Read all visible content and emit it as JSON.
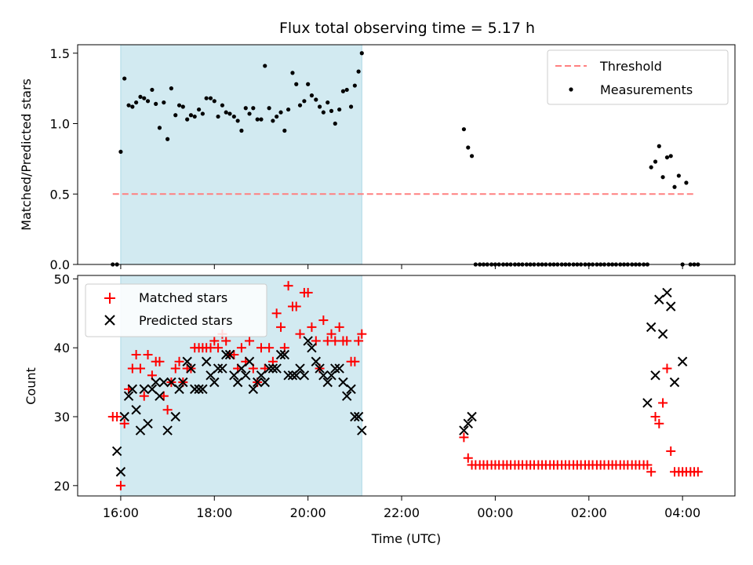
{
  "title": "Flux total observing time = 5.17 h",
  "colors": {
    "shade": "#add8e6",
    "threshold": "#ff8080",
    "measurements": "#000000",
    "matched": "#ff0000",
    "predicted": "#000000"
  },
  "chart_data": [
    {
      "type": "scatter",
      "ylabel": "Matched/Predicted stars",
      "ylim": [
        0,
        1.56
      ],
      "xlim": [
        15.08,
        29.12
      ],
      "yticks": [
        0.0,
        0.5,
        1.0,
        1.5
      ],
      "ytick_labels": [
        "0.0",
        "0.5",
        "1.0",
        "1.5"
      ],
      "shaded_span": [
        16.0,
        21.15
      ],
      "legend": {
        "placement": "top-right",
        "threshold_label": "Threshold",
        "measurements_label": "Measurements"
      },
      "threshold": {
        "value": 0.5,
        "x_range": [
          15.83,
          28.25
        ]
      },
      "measurements": {
        "x": [
          15.83,
          15.92,
          16.0,
          16.08,
          16.17,
          16.25,
          16.33,
          16.42,
          16.5,
          16.58,
          16.67,
          16.75,
          16.83,
          16.92,
          17.0,
          17.08,
          17.17,
          17.25,
          17.33,
          17.42,
          17.5,
          17.58,
          17.67,
          17.75,
          17.83,
          17.92,
          18.0,
          18.08,
          18.17,
          18.25,
          18.33,
          18.42,
          18.5,
          18.58,
          18.67,
          18.75,
          18.83,
          18.92,
          19.0,
          19.08,
          19.17,
          19.25,
          19.33,
          19.42,
          19.5,
          19.58,
          19.67,
          19.75,
          19.83,
          19.92,
          20.0,
          20.08,
          20.17,
          20.25,
          20.33,
          20.42,
          20.5,
          20.58,
          20.67,
          20.75,
          20.83,
          20.92,
          21.0,
          21.08,
          21.15,
          23.33,
          23.42,
          23.5,
          23.58,
          23.67,
          23.75,
          23.83,
          23.92,
          24.0,
          24.08,
          24.17,
          24.25,
          24.33,
          24.42,
          24.5,
          24.58,
          24.67,
          24.75,
          24.83,
          24.92,
          25.0,
          25.08,
          25.17,
          25.25,
          25.33,
          25.42,
          25.5,
          25.58,
          25.67,
          25.75,
          25.83,
          25.92,
          26.0,
          26.08,
          26.17,
          26.25,
          26.33,
          26.42,
          26.5,
          26.58,
          26.67,
          26.75,
          26.83,
          26.92,
          27.0,
          27.08,
          27.17,
          27.25,
          27.33,
          27.42,
          27.5,
          27.58,
          27.67,
          27.75,
          27.83,
          27.92,
          28.0,
          28.08,
          28.17,
          28.25,
          28.33
        ],
        "y": [
          0.0,
          0.0,
          0.8,
          1.32,
          1.13,
          1.12,
          1.15,
          1.19,
          1.18,
          1.16,
          1.24,
          1.14,
          0.97,
          1.15,
          0.89,
          1.25,
          1.06,
          1.13,
          1.12,
          1.03,
          1.06,
          1.05,
          1.1,
          1.07,
          1.18,
          1.18,
          1.16,
          1.05,
          1.13,
          1.08,
          1.07,
          1.05,
          1.02,
          0.95,
          1.11,
          1.07,
          1.11,
          1.03,
          1.03,
          1.41,
          1.11,
          1.02,
          1.05,
          1.08,
          0.95,
          1.1,
          1.36,
          1.28,
          1.13,
          1.16,
          1.28,
          1.2,
          1.17,
          1.12,
          1.08,
          1.15,
          1.09,
          1.0,
          1.1,
          1.23,
          1.24,
          1.12,
          1.27,
          1.37,
          1.5,
          0.96,
          0.83,
          0.77,
          0.0,
          0.0,
          0.0,
          0.0,
          0.0,
          0.0,
          0.0,
          0.0,
          0.0,
          0.0,
          0.0,
          0.0,
          0.0,
          0.0,
          0.0,
          0.0,
          0.0,
          0.0,
          0.0,
          0.0,
          0.0,
          0.0,
          0.0,
          0.0,
          0.0,
          0.0,
          0.0,
          0.0,
          0.0,
          0.0,
          0.0,
          0.0,
          0.0,
          0.0,
          0.0,
          0.0,
          0.0,
          0.0,
          0.0,
          0.0,
          0.0,
          0.0,
          0.0,
          0.0,
          0.0,
          0.69,
          0.73,
          0.84,
          0.62,
          0.76,
          0.77,
          0.55,
          0.63,
          0.0,
          0.58,
          0.0,
          0.0,
          0.0
        ]
      }
    },
    {
      "type": "scatter",
      "xlabel": "Time (UTC)",
      "ylabel": "Count",
      "ylim": [
        18.5,
        50.5
      ],
      "xlim": [
        15.08,
        29.12
      ],
      "yticks": [
        20,
        30,
        40,
        50
      ],
      "ytick_labels": [
        "20",
        "30",
        "40",
        "50"
      ],
      "xticks": [
        16,
        18,
        20,
        22,
        24,
        26,
        28
      ],
      "xtick_labels": [
        "16:00",
        "18:00",
        "20:00",
        "22:00",
        "00:00",
        "02:00",
        "04:00"
      ],
      "shaded_span": [
        16.0,
        21.15
      ],
      "legend": {
        "placement": "top-left"
      },
      "series": [
        {
          "name": "Matched stars",
          "marker": "plus",
          "x": [
            15.83,
            15.92,
            16.0,
            16.08,
            16.17,
            16.25,
            16.33,
            16.42,
            16.5,
            16.58,
            16.67,
            16.75,
            16.83,
            16.92,
            17.0,
            17.08,
            17.17,
            17.25,
            17.33,
            17.42,
            17.5,
            17.58,
            17.67,
            17.75,
            17.83,
            17.92,
            18.0,
            18.08,
            18.17,
            18.25,
            18.33,
            18.42,
            18.5,
            18.58,
            18.67,
            18.75,
            18.83,
            18.92,
            19.0,
            19.08,
            19.17,
            19.25,
            19.33,
            19.42,
            19.5,
            19.58,
            19.67,
            19.75,
            19.83,
            19.92,
            20.0,
            20.08,
            20.17,
            20.25,
            20.33,
            20.42,
            20.5,
            20.58,
            20.67,
            20.75,
            20.83,
            20.92,
            21.0,
            21.08,
            21.15,
            23.33,
            23.42,
            23.5,
            23.58,
            23.67,
            23.75,
            23.83,
            23.92,
            24.0,
            24.08,
            24.17,
            24.25,
            24.33,
            24.42,
            24.5,
            24.58,
            24.67,
            24.75,
            24.83,
            24.92,
            25.0,
            25.08,
            25.17,
            25.25,
            25.33,
            25.42,
            25.5,
            25.58,
            25.67,
            25.75,
            25.83,
            25.92,
            26.0,
            26.08,
            26.17,
            26.25,
            26.33,
            26.42,
            26.5,
            26.58,
            26.67,
            26.75,
            26.83,
            26.92,
            27.0,
            27.08,
            27.17,
            27.25,
            27.33,
            27.42,
            27.5,
            27.58,
            27.67,
            27.75,
            27.83,
            27.92,
            28.0,
            28.08,
            28.17,
            28.25,
            28.33
          ],
          "y": [
            30,
            30,
            20,
            29,
            34,
            37,
            39,
            37,
            33,
            39,
            36,
            38,
            38,
            33,
            31,
            35,
            37,
            38,
            35,
            37,
            37,
            40,
            40,
            40,
            40,
            40,
            41,
            40,
            42,
            41,
            39,
            39,
            37,
            40,
            38,
            41,
            37,
            35,
            40,
            37,
            40,
            38,
            45,
            43,
            40,
            49,
            46,
            46,
            42,
            48,
            48,
            43,
            41,
            37,
            44,
            41,
            42,
            41,
            43,
            41,
            41,
            38,
            38,
            41,
            42,
            27,
            24,
            23,
            23,
            23,
            23,
            23,
            23,
            23,
            23,
            23,
            23,
            23,
            23,
            23,
            23,
            23,
            23,
            23,
            23,
            23,
            23,
            23,
            23,
            23,
            23,
            23,
            23,
            23,
            23,
            23,
            23,
            23,
            23,
            23,
            23,
            23,
            23,
            23,
            23,
            23,
            23,
            23,
            23,
            23,
            23,
            23,
            23,
            22,
            30,
            29,
            32,
            37,
            25,
            22,
            22,
            22,
            22,
            22,
            22,
            22
          ]
        },
        {
          "name": "Predicted stars",
          "marker": "x",
          "x": [
            15.92,
            16.0,
            16.08,
            16.17,
            16.25,
            16.33,
            16.42,
            16.5,
            16.58,
            16.67,
            16.75,
            16.83,
            16.92,
            17.0,
            17.08,
            17.17,
            17.25,
            17.33,
            17.42,
            17.5,
            17.58,
            17.67,
            17.75,
            17.83,
            17.92,
            18.0,
            18.08,
            18.17,
            18.25,
            18.33,
            18.42,
            18.5,
            18.58,
            18.67,
            18.75,
            18.83,
            18.92,
            19.0,
            19.08,
            19.17,
            19.25,
            19.33,
            19.42,
            19.5,
            19.58,
            19.67,
            19.75,
            19.83,
            19.92,
            20.0,
            20.08,
            20.17,
            20.25,
            20.33,
            20.42,
            20.5,
            20.58,
            20.67,
            20.75,
            20.83,
            20.92,
            21.0,
            21.08,
            21.15,
            23.33,
            23.42,
            23.5,
            27.25,
            27.33,
            27.42,
            27.5,
            27.58,
            27.67,
            27.75,
            27.83,
            28.0
          ],
          "y": [
            25,
            22,
            30,
            33,
            34,
            31,
            28,
            34,
            29,
            34,
            35,
            33,
            35,
            28,
            35,
            30,
            34,
            35,
            38,
            37,
            34,
            34,
            34,
            38,
            36,
            35,
            37,
            37,
            39,
            39,
            36,
            35,
            37,
            36,
            38,
            34,
            35,
            36,
            35,
            37,
            37,
            37,
            39,
            39,
            36,
            36,
            36,
            37,
            36,
            41,
            40,
            38,
            37,
            36,
            35,
            36,
            37,
            37,
            35,
            33,
            34,
            30,
            30,
            28,
            28,
            29,
            30,
            32,
            43,
            36,
            47,
            42,
            48,
            46,
            35,
            38
          ]
        }
      ]
    }
  ]
}
